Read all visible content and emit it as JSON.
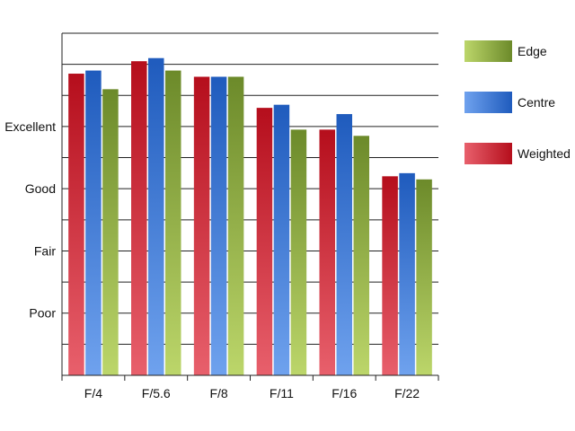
{
  "chart_data": {
    "type": "bar",
    "categories": [
      "F/4",
      "F/5.6",
      "F/8",
      "F/11",
      "F/16",
      "F/22"
    ],
    "series": [
      {
        "name": "Weighted",
        "values": [
          4.85,
          5.05,
          4.8,
          4.3,
          3.95,
          3.2
        ],
        "colors": [
          "#b50e1c",
          "#e8606c"
        ]
      },
      {
        "name": "Centre",
        "values": [
          4.9,
          5.1,
          4.8,
          4.35,
          4.2,
          3.25
        ],
        "colors": [
          "#1f5bbd",
          "#6fa2ee"
        ]
      },
      {
        "name": "Edge",
        "values": [
          4.6,
          4.9,
          4.8,
          3.95,
          3.85,
          3.15
        ],
        "colors": [
          "#6c8a2a",
          "#bcd66a"
        ]
      }
    ],
    "legend_order": [
      "Edge",
      "Centre",
      "Weighted"
    ],
    "y_tick_labels": [
      {
        "value": 1,
        "label": "Poor"
      },
      {
        "value": 2,
        "label": "Fair"
      },
      {
        "value": 3,
        "label": "Good"
      },
      {
        "value": 4,
        "label": "Excellent"
      }
    ],
    "ylim": [
      0,
      5.5
    ],
    "gridlines": [
      0.5,
      1,
      1.5,
      2,
      2.5,
      3,
      3.5,
      4,
      4.5,
      5,
      5.5
    ],
    "grid": true,
    "legend_position": "right"
  }
}
